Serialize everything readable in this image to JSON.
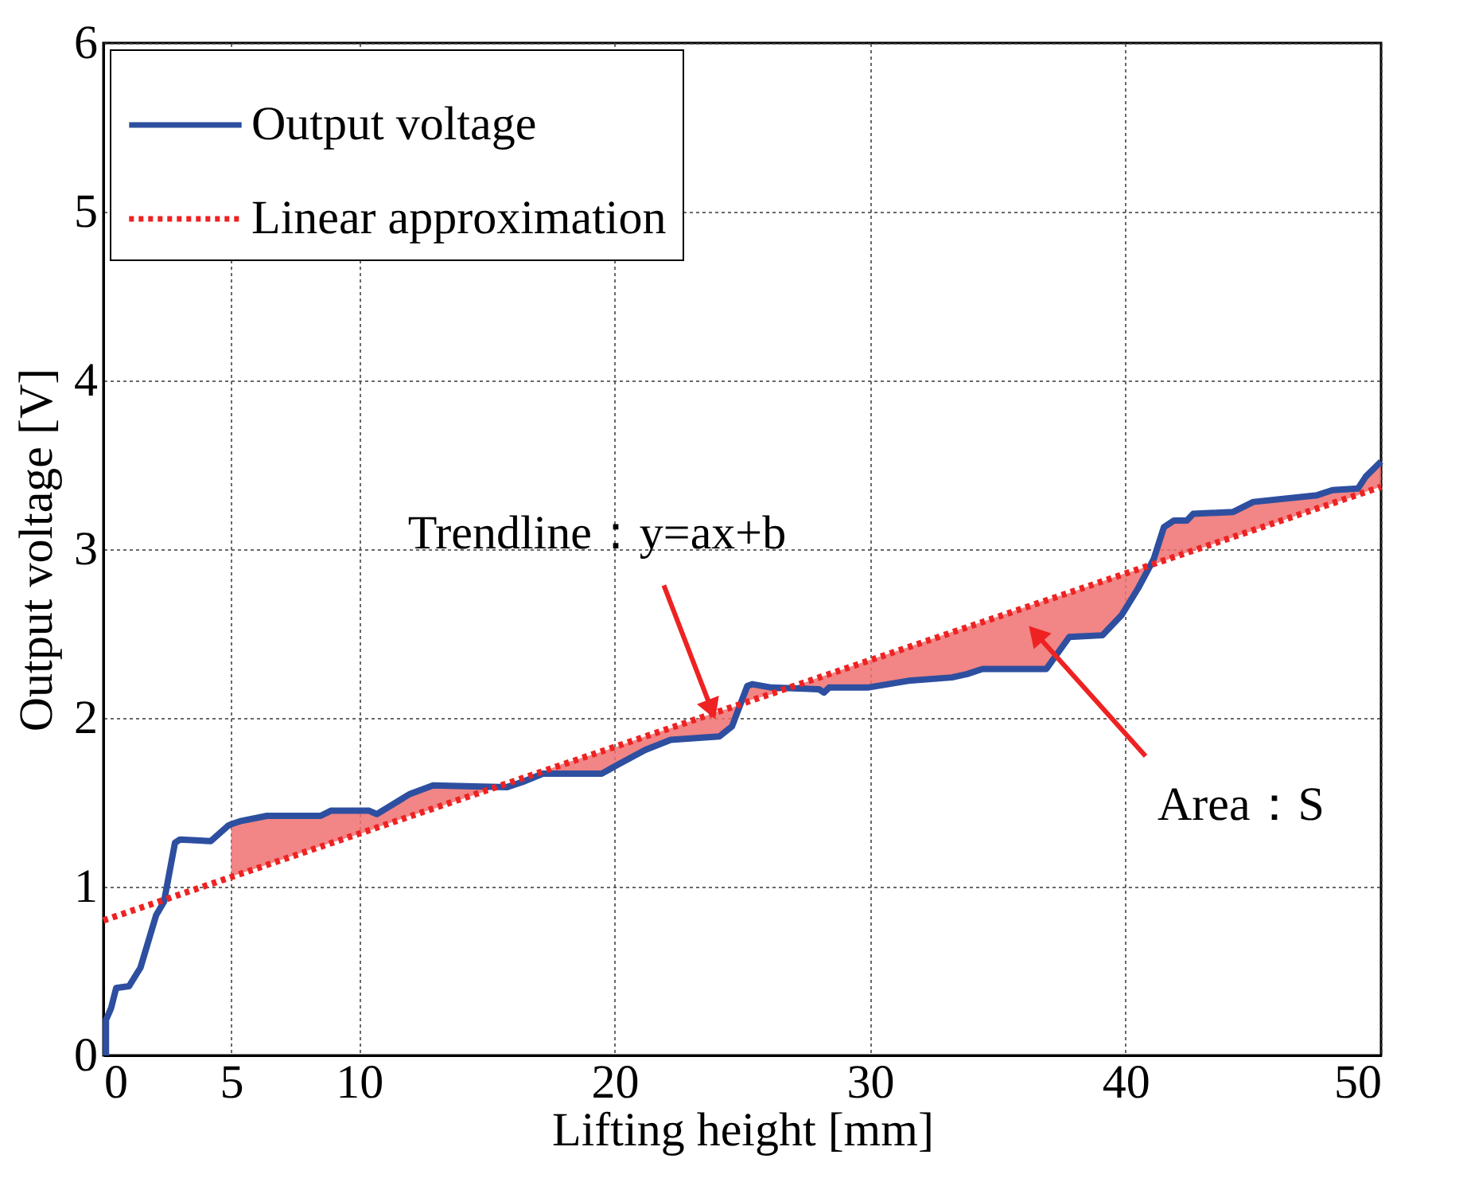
{
  "chart_data": {
    "type": "line",
    "xlabel": "Lifting height [mm]",
    "ylabel": "Output voltage [V]",
    "xlim": [
      0,
      50
    ],
    "xticks": [
      0,
      5,
      10,
      20,
      30,
      40,
      50
    ],
    "ylim": [
      0,
      6
    ],
    "yticks": [
      0,
      1,
      2,
      3,
      4,
      5,
      6
    ],
    "grid": true,
    "legend": "top left",
    "series": [
      {
        "name": "Output voltage",
        "color": "#2e4fa0",
        "line_style": "solid",
        "x": [
          0.1,
          0.1,
          0.3,
          0.5,
          1.0,
          1.45,
          2.06,
          2.37,
          2.8,
          3.0,
          4.2,
          4.87,
          5.0,
          5.4,
          6.4,
          8.5,
          8.9,
          10.4,
          10.7,
          12.0,
          12.9,
          15.8,
          16.4,
          17.2,
          18.0,
          19.5,
          20.1,
          21.2,
          22.2,
          24.1,
          24.6,
          25.2,
          25.4,
          26.15,
          28.0,
          28.2,
          28.4,
          29.9,
          31.5,
          33.2,
          33.8,
          34.4,
          36.9,
          37.8,
          39.1,
          39.85,
          40.5,
          41.1,
          41.5,
          41.9,
          42.4,
          42.65,
          44.2,
          45.0,
          47.5,
          48.1,
          49.1,
          49.4,
          50.0
        ],
        "values": [
          0,
          0.21,
          0.28,
          0.4,
          0.41,
          0.52,
          0.83,
          0.91,
          1.26,
          1.28,
          1.27,
          1.36,
          1.37,
          1.39,
          1.42,
          1.42,
          1.45,
          1.45,
          1.43,
          1.55,
          1.6,
          1.59,
          1.62,
          1.67,
          1.67,
          1.67,
          1.72,
          1.81,
          1.87,
          1.89,
          1.95,
          2.19,
          2.2,
          2.18,
          2.17,
          2.15,
          2.18,
          2.18,
          2.22,
          2.24,
          2.26,
          2.29,
          2.29,
          2.48,
          2.49,
          2.61,
          2.77,
          2.94,
          3.13,
          3.17,
          3.17,
          3.21,
          3.22,
          3.28,
          3.32,
          3.35,
          3.36,
          3.43,
          3.52
        ],
        "lower": [
          null,
          null,
          null,
          null,
          null,
          null,
          null,
          null,
          null,
          null,
          null,
          null,
          1.06,
          1.08,
          1.13,
          1.24,
          1.26,
          1.33,
          1.35,
          1.42,
          1.46,
          1.61,
          1.64,
          1.68,
          1.73,
          1.8,
          1.83,
          1.89,
          1.94,
          2.04,
          2.06,
          2.1,
          2.11,
          2.14,
          2.24,
          2.25,
          2.26,
          2.34,
          2.42,
          2.51,
          2.54,
          2.57,
          2.7,
          2.74,
          2.81,
          2.85,
          2.88,
          2.91,
          2.93,
          2.95,
          2.98,
          2.99,
          3.07,
          3.11,
          3.24,
          3.27,
          3.32,
          3.34,
          3.37
        ],
        "upper": [
          null,
          null,
          null,
          null,
          null,
          null,
          null,
          null,
          null,
          null,
          null,
          null,
          1.37,
          1.39,
          1.42,
          1.42,
          1.45,
          1.45,
          1.43,
          1.55,
          1.6,
          1.59,
          1.62,
          1.67,
          1.67,
          1.67,
          1.72,
          1.81,
          1.87,
          1.89,
          1.95,
          2.19,
          2.2,
          2.18,
          2.17,
          2.15,
          2.18,
          2.18,
          2.22,
          2.24,
          2.26,
          2.29,
          2.29,
          2.48,
          2.49,
          2.61,
          2.77,
          2.94,
          3.13,
          3.17,
          3.17,
          3.21,
          3.22,
          3.28,
          3.32,
          3.35,
          3.36,
          3.43,
          3.52
        ]
      },
      {
        "name": "Linear approximation",
        "color": "#ee2222",
        "line_style": "dotted",
        "x": [
          0,
          50
        ],
        "values": [
          0.8,
          3.37
        ]
      }
    ],
    "annotations": [
      {
        "text": "Trendline：y=ax+b",
        "x": 23.8,
        "y": 2.05
      },
      "Area：S"
    ]
  }
}
